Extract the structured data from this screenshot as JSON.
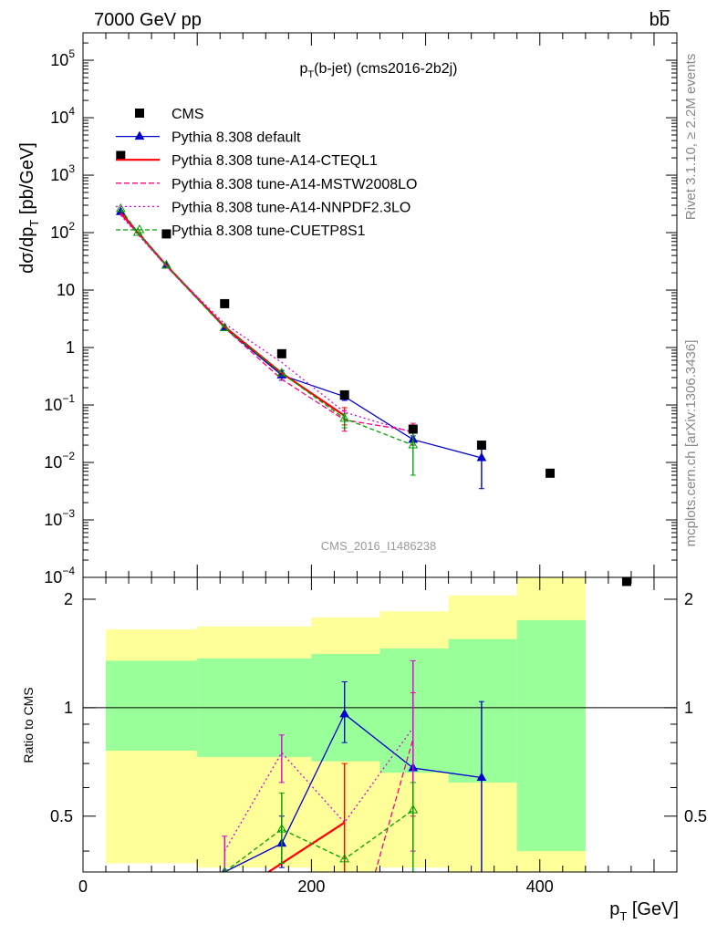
{
  "header": {
    "left_label": "7000 GeV pp",
    "right_label": "bb̅"
  },
  "side_labels": {
    "right_top": "Rivet 3.1.10, ≥ 2.2M events",
    "right_bottom": "mcplots.cern.ch [arXiv:1306.3436]"
  },
  "chart_data": {
    "type": "line",
    "title_main": "p",
    "title_sub": "T",
    "title_rest": "(b-jet) (cms2016-2b2j)",
    "watermark": "CMS_2016_I1486238",
    "y_label_main": "dσ/dp",
    "y_label_sub": "T",
    "y_label_rest": " [pb/GeV]",
    "x_label_main": "p",
    "x_label_sub": "T",
    "x_label_rest": " [GeV]",
    "ratio_y_label": "Ratio to CMS",
    "x_range": [
      0,
      520
    ],
    "upper_y_range": [
      0.0001,
      300000
    ],
    "upper_y_scale": "log",
    "ratio_y_range": [
      0.35,
      2.3
    ],
    "ratio_y_scale": "log",
    "upper_ticks": [
      {
        "label_main": "10",
        "label_sup": "5",
        "value": 100000
      },
      {
        "label_main": "10",
        "label_sup": "4",
        "value": 10000
      },
      {
        "label_main": "10",
        "label_sup": "3",
        "value": 1000
      },
      {
        "label_main": "10",
        "label_sup": "2",
        "value": 100
      },
      {
        "label_main": "10",
        "label_sup": "",
        "value": 10
      },
      {
        "label_main": "1",
        "label_sup": "",
        "value": 1
      },
      {
        "label_main": "10",
        "label_sup": "−1",
        "value": 0.1
      },
      {
        "label_main": "10",
        "label_sup": "−2",
        "value": 0.01
      },
      {
        "label_main": "10",
        "label_sup": "−3",
        "value": 0.001
      },
      {
        "label_main": "10",
        "label_sup": "−4",
        "value": 0.0001
      }
    ],
    "x_ticks": [
      {
        "label": "0",
        "value": 0
      },
      {
        "label": "200",
        "value": 200
      },
      {
        "label": "400",
        "value": 400
      }
    ],
    "ratio_ticks": [
      {
        "label": "2",
        "value": 2
      },
      {
        "label": "1",
        "value": 1
      },
      {
        "label": "0.5",
        "value": 0.5
      }
    ],
    "data_points": {
      "name": "CMS",
      "x": [
        33,
        73,
        124,
        174,
        229,
        289,
        349,
        409,
        476
      ],
      "y": [
        2200,
        95,
        5.8,
        0.78,
        0.15,
        0.038,
        0.02,
        0.0065,
        8.5e-05
      ]
    },
    "band_edges": [
      20,
      100,
      200,
      260,
      320,
      380,
      440
    ],
    "band_green": [
      [
        0.76,
        1.35
      ],
      [
        0.73,
        1.37
      ],
      [
        0.71,
        1.41
      ],
      [
        0.66,
        1.46
      ],
      [
        0.62,
        1.55
      ],
      [
        0.4,
        1.75
      ]
    ],
    "band_yellow": [
      [
        0.37,
        1.65
      ],
      [
        0.36,
        1.68
      ],
      [
        0.35,
        1.78
      ],
      [
        0.36,
        1.85
      ],
      [
        0.35,
        2.05
      ],
      [
        0.3,
        2.45
      ]
    ],
    "series": [
      {
        "name": "Pythia 8.308 default",
        "color": "#0000cc",
        "dash": "",
        "marker": "triangle-filled",
        "x": [
          33,
          73,
          124,
          174,
          229,
          289,
          349
        ],
        "y": [
          230,
          27,
          2.2,
          0.33,
          0.14,
          0.025,
          0.012
        ],
        "yerr": [
          [
            null,
            null
          ],
          [
            null,
            null
          ],
          [
            null,
            null
          ],
          [
            0.27,
            0.4
          ],
          [
            0.12,
            0.17
          ],
          [
            0.02,
            0.029
          ],
          [
            0.0035,
            0.021
          ]
        ],
        "ratio_x": [
          124,
          174,
          229,
          289,
          349
        ],
        "ratio_y": [
          0.35,
          0.42,
          0.96,
          0.68,
          0.64
        ],
        "ratio_err": [
          [
            null,
            null
          ],
          [
            0.36,
            0.5
          ],
          [
            0.8,
            1.18
          ],
          [
            null,
            null
          ],
          [
            0.2,
            1.04
          ]
        ]
      },
      {
        "name": "Pythia 8.308 tune-A14-CTEQL1",
        "color": "#ff0000",
        "dash": "",
        "marker": "none",
        "x": [
          33,
          73,
          124,
          174,
          229
        ],
        "y": [
          220,
          27,
          2.3,
          0.36,
          0.065
        ],
        "yerr": [
          [
            null,
            null
          ],
          [
            null,
            null
          ],
          [
            null,
            null
          ],
          [
            null,
            null
          ],
          [
            0.045,
            0.09
          ]
        ],
        "ratio_x": [
          150,
          229
        ],
        "ratio_y": [
          0.33,
          0.48
        ],
        "ratio_err": [
          [
            null,
            null
          ],
          [
            0.3,
            0.7
          ]
        ]
      },
      {
        "name": "Pythia 8.308 tune-A14-MSTW2008LO",
        "color": "#ff0080",
        "dash": "6,3",
        "marker": "none",
        "x": [
          33,
          73,
          124,
          174,
          229,
          289
        ],
        "y": [
          210,
          26,
          2.2,
          0.28,
          0.055,
          0.035
        ],
        "yerr": [
          [
            null,
            null
          ],
          [
            null,
            null
          ],
          [
            null,
            null
          ],
          [
            null,
            null
          ],
          [
            0.035,
            0.08
          ],
          [
            0.02,
            0.048
          ]
        ],
        "ratio_x": [
          250,
          289
        ],
        "ratio_y": [
          0.3,
          0.82
        ],
        "ratio_err": [
          [
            null,
            null
          ],
          [
            0.5,
            1.1
          ]
        ]
      },
      {
        "name": "Pythia 8.308 tune-A14-NNPDF2.3LO",
        "color": "#dd00dd",
        "dash": "2,3",
        "marker": "none",
        "x": [
          33,
          73,
          124,
          174,
          229,
          289
        ],
        "y": [
          200,
          26,
          2.6,
          0.55,
          0.075,
          0.033
        ],
        "yerr": [
          [
            null,
            null
          ],
          [
            null,
            null
          ],
          [
            null,
            null
          ],
          [
            null,
            null
          ],
          [
            null,
            null
          ],
          [
            null,
            null
          ]
        ],
        "ratio_x": [
          124,
          174,
          229,
          289
        ],
        "ratio_y": [
          0.4,
          0.75,
          0.48,
          0.88
        ],
        "ratio_err": [
          [
            0.3,
            0.44
          ],
          [
            0.62,
            0.84
          ],
          [
            null,
            null
          ],
          [
            0.4,
            1.35
          ]
        ]
      },
      {
        "name": "Pythia 8.308 tune-CUETP8S1",
        "color": "#00a000",
        "dash": "5,3",
        "marker": "triangle-open",
        "x": [
          33,
          48,
          73,
          124,
          174,
          229,
          289
        ],
        "y": [
          260,
          100,
          27,
          2.2,
          0.36,
          0.058,
          0.02
        ],
        "yerr": [
          [
            null,
            null
          ],
          [
            null,
            null
          ],
          [
            null,
            null
          ],
          [
            null,
            null
          ],
          [
            null,
            null
          ],
          [
            0.04,
            0.07
          ],
          [
            0.006,
            0.034
          ]
        ],
        "ratio_x": [
          124,
          174,
          229,
          289
        ],
        "ratio_y": [
          0.35,
          0.46,
          0.38,
          0.52
        ],
        "ratio_err": [
          [
            null,
            null
          ],
          [
            0.37,
            0.58
          ],
          [
            null,
            null
          ],
          [
            0.35,
            0.62
          ]
        ]
      }
    ]
  }
}
